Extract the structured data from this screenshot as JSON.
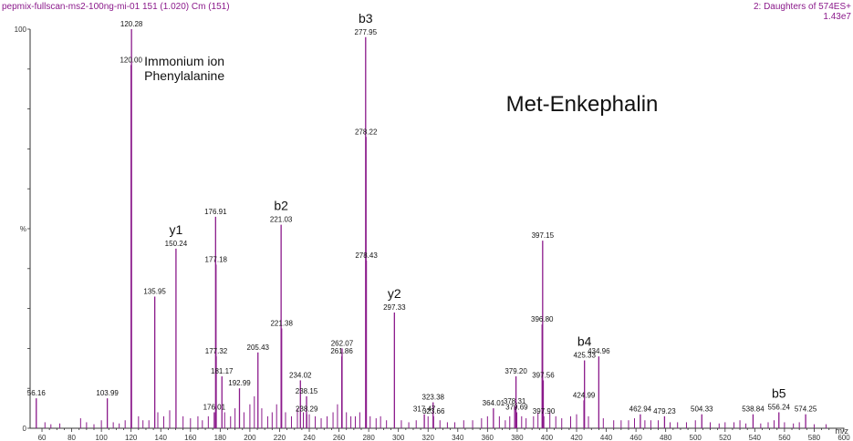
{
  "header": {
    "left": "pepmix-fullscan-ms2-100ng-mi-01 151 (1.020) Cm (151)",
    "right_line1": "2: Daughters of 574ES+",
    "right_line2": "1.43e7"
  },
  "colors": {
    "peak": "#8b1a8b",
    "axis": "#333333",
    "header": "#8b1a8b",
    "text": "#111111"
  },
  "chart_data": {
    "type": "bar",
    "title": "Met-Enkephalin",
    "xlabel": "m/z",
    "ylabel": "%",
    "xlim": [
      52,
      600
    ],
    "ylim": [
      0,
      100
    ],
    "x_ticks": [
      60,
      80,
      100,
      120,
      140,
      160,
      180,
      200,
      220,
      240,
      260,
      280,
      300,
      320,
      340,
      360,
      380,
      400,
      420,
      440,
      460,
      480,
      500,
      520,
      540,
      560,
      580,
      600
    ],
    "y_tick_labels": [
      "0",
      "%",
      "100"
    ],
    "peaks": [
      {
        "mz": 56.16,
        "intensity": 7.5,
        "label": "56.16"
      },
      {
        "mz": 103.99,
        "intensity": 7.5,
        "label": "103.99"
      },
      {
        "mz": 120.0,
        "intensity": 91,
        "label": "120.00"
      },
      {
        "mz": 120.28,
        "intensity": 100,
        "label": "120.28"
      },
      {
        "mz": 135.95,
        "intensity": 33,
        "label": "135.95"
      },
      {
        "mz": 150.24,
        "intensity": 45,
        "label": "150.24"
      },
      {
        "mz": 176.01,
        "intensity": 4,
        "label": "176.01"
      },
      {
        "mz": 176.91,
        "intensity": 53,
        "label": "176.91"
      },
      {
        "mz": 177.18,
        "intensity": 41,
        "label": "177.18"
      },
      {
        "mz": 177.32,
        "intensity": 18,
        "label": "177.32"
      },
      {
        "mz": 181.17,
        "intensity": 13,
        "label": "181.17"
      },
      {
        "mz": 192.99,
        "intensity": 10,
        "label": "192.99"
      },
      {
        "mz": 205.43,
        "intensity": 19,
        "label": "205.43"
      },
      {
        "mz": 221.03,
        "intensity": 51,
        "label": "221.03"
      },
      {
        "mz": 221.38,
        "intensity": 25,
        "label": "221.38"
      },
      {
        "mz": 234.02,
        "intensity": 12,
        "label": "234.02"
      },
      {
        "mz": 238.15,
        "intensity": 8,
        "label": "238.15"
      },
      {
        "mz": 238.29,
        "intensity": 3.5,
        "label": "238.29"
      },
      {
        "mz": 261.86,
        "intensity": 18,
        "label": "261.86"
      },
      {
        "mz": 262.07,
        "intensity": 20,
        "label": "262.07"
      },
      {
        "mz": 277.95,
        "intensity": 98,
        "label": "277.95"
      },
      {
        "mz": 278.22,
        "intensity": 73,
        "label": "278.22"
      },
      {
        "mz": 278.43,
        "intensity": 42,
        "label": "278.43"
      },
      {
        "mz": 297.33,
        "intensity": 29,
        "label": "297.33"
      },
      {
        "mz": 317.47,
        "intensity": 3.5,
        "label": "317.47"
      },
      {
        "mz": 323.38,
        "intensity": 6.5,
        "label": "323.38"
      },
      {
        "mz": 323.66,
        "intensity": 3,
        "label": "323.66"
      },
      {
        "mz": 364.01,
        "intensity": 5,
        "label": "364.01"
      },
      {
        "mz": 378.31,
        "intensity": 5.5,
        "label": "378.31"
      },
      {
        "mz": 379.2,
        "intensity": 13,
        "label": "379.20"
      },
      {
        "mz": 379.69,
        "intensity": 4,
        "label": "379.69"
      },
      {
        "mz": 396.8,
        "intensity": 26,
        "label": "396.80"
      },
      {
        "mz": 397.15,
        "intensity": 47,
        "label": "397.15"
      },
      {
        "mz": 397.56,
        "intensity": 12,
        "label": "397.56"
      },
      {
        "mz": 397.9,
        "intensity": 3,
        "label": "397.90"
      },
      {
        "mz": 424.99,
        "intensity": 7,
        "label": "424.99"
      },
      {
        "mz": 425.33,
        "intensity": 17,
        "label": "425.33"
      },
      {
        "mz": 434.96,
        "intensity": 18,
        "label": "434.96"
      },
      {
        "mz": 462.94,
        "intensity": 3.5,
        "label": "462.94"
      },
      {
        "mz": 479.23,
        "intensity": 3,
        "label": "479.23"
      },
      {
        "mz": 504.33,
        "intensity": 3.5,
        "label": "504.33"
      },
      {
        "mz": 538.84,
        "intensity": 3.5,
        "label": "538.84"
      },
      {
        "mz": 556.24,
        "intensity": 4,
        "label": "556.24"
      },
      {
        "mz": 574.25,
        "intensity": 3.5,
        "label": "574.25"
      }
    ],
    "minor_peaks": [
      [
        62,
        1.5
      ],
      [
        66,
        1
      ],
      [
        72,
        1.2
      ],
      [
        86,
        2.5
      ],
      [
        90,
        1.5
      ],
      [
        95,
        1
      ],
      [
        100,
        2
      ],
      [
        108,
        1.5
      ],
      [
        112,
        1.2
      ],
      [
        116,
        2
      ],
      [
        125,
        3
      ],
      [
        128,
        2
      ],
      [
        132,
        2
      ],
      [
        138,
        4
      ],
      [
        142,
        3
      ],
      [
        146,
        4.5
      ],
      [
        155,
        3
      ],
      [
        160,
        2.5
      ],
      [
        165,
        3
      ],
      [
        168,
        2
      ],
      [
        172,
        3
      ],
      [
        183,
        4
      ],
      [
        187,
        3
      ],
      [
        190,
        5
      ],
      [
        196,
        4
      ],
      [
        200,
        6
      ],
      [
        203,
        8
      ],
      [
        208,
        5
      ],
      [
        212,
        3
      ],
      [
        215,
        4
      ],
      [
        218,
        6
      ],
      [
        224,
        4
      ],
      [
        228,
        3
      ],
      [
        232,
        5
      ],
      [
        236,
        4
      ],
      [
        240,
        3.5
      ],
      [
        244,
        3
      ],
      [
        248,
        2.5
      ],
      [
        252,
        3
      ],
      [
        256,
        4
      ],
      [
        259,
        6
      ],
      [
        265,
        4
      ],
      [
        268,
        3
      ],
      [
        271,
        3
      ],
      [
        274,
        4
      ],
      [
        281,
        3
      ],
      [
        285,
        2.5
      ],
      [
        288,
        3
      ],
      [
        292,
        2
      ],
      [
        302,
        2
      ],
      [
        307,
        1.5
      ],
      [
        312,
        2
      ],
      [
        320,
        3
      ],
      [
        328,
        2
      ],
      [
        333,
        1.5
      ],
      [
        338,
        1.5
      ],
      [
        344,
        2
      ],
      [
        350,
        2
      ],
      [
        356,
        2.5
      ],
      [
        360,
        3
      ],
      [
        368,
        3
      ],
      [
        372,
        2
      ],
      [
        375,
        3
      ],
      [
        383,
        3
      ],
      [
        386,
        2.5
      ],
      [
        391,
        3
      ],
      [
        394,
        4
      ],
      [
        402,
        4
      ],
      [
        406,
        3
      ],
      [
        410,
        2.5
      ],
      [
        416,
        3
      ],
      [
        420,
        3.5
      ],
      [
        428,
        3
      ],
      [
        438,
        2.5
      ],
      [
        445,
        2
      ],
      [
        450,
        2
      ],
      [
        455,
        2
      ],
      [
        459,
        2.5
      ],
      [
        466,
        2
      ],
      [
        470,
        2
      ],
      [
        475,
        2
      ],
      [
        483,
        1.5
      ],
      [
        488,
        1.5
      ],
      [
        494,
        1.5
      ],
      [
        500,
        2
      ],
      [
        510,
        1.5
      ],
      [
        516,
        1.2
      ],
      [
        520,
        1.5
      ],
      [
        526,
        1.5
      ],
      [
        530,
        2
      ],
      [
        534,
        1.2
      ],
      [
        544,
        1.2
      ],
      [
        549,
        1.5
      ],
      [
        553,
        2
      ],
      [
        560,
        1.5
      ],
      [
        566,
        1.2
      ],
      [
        570,
        1.5
      ],
      [
        580,
        1
      ],
      [
        588,
        1
      ]
    ],
    "annotations": [
      {
        "mz": 120.28,
        "lines": [
          "Immonium ion",
          "Phenylalanine"
        ]
      },
      {
        "mz": 277.95,
        "lines": [
          "b3"
        ]
      },
      {
        "mz": 150.24,
        "lines": [
          "y1"
        ]
      },
      {
        "mz": 221.03,
        "lines": [
          "b2"
        ]
      },
      {
        "mz": 297.33,
        "lines": [
          "y2"
        ]
      },
      {
        "mz": 425.33,
        "lines": [
          "b4"
        ]
      },
      {
        "mz": 556.24,
        "lines": [
          "b5"
        ]
      }
    ]
  }
}
